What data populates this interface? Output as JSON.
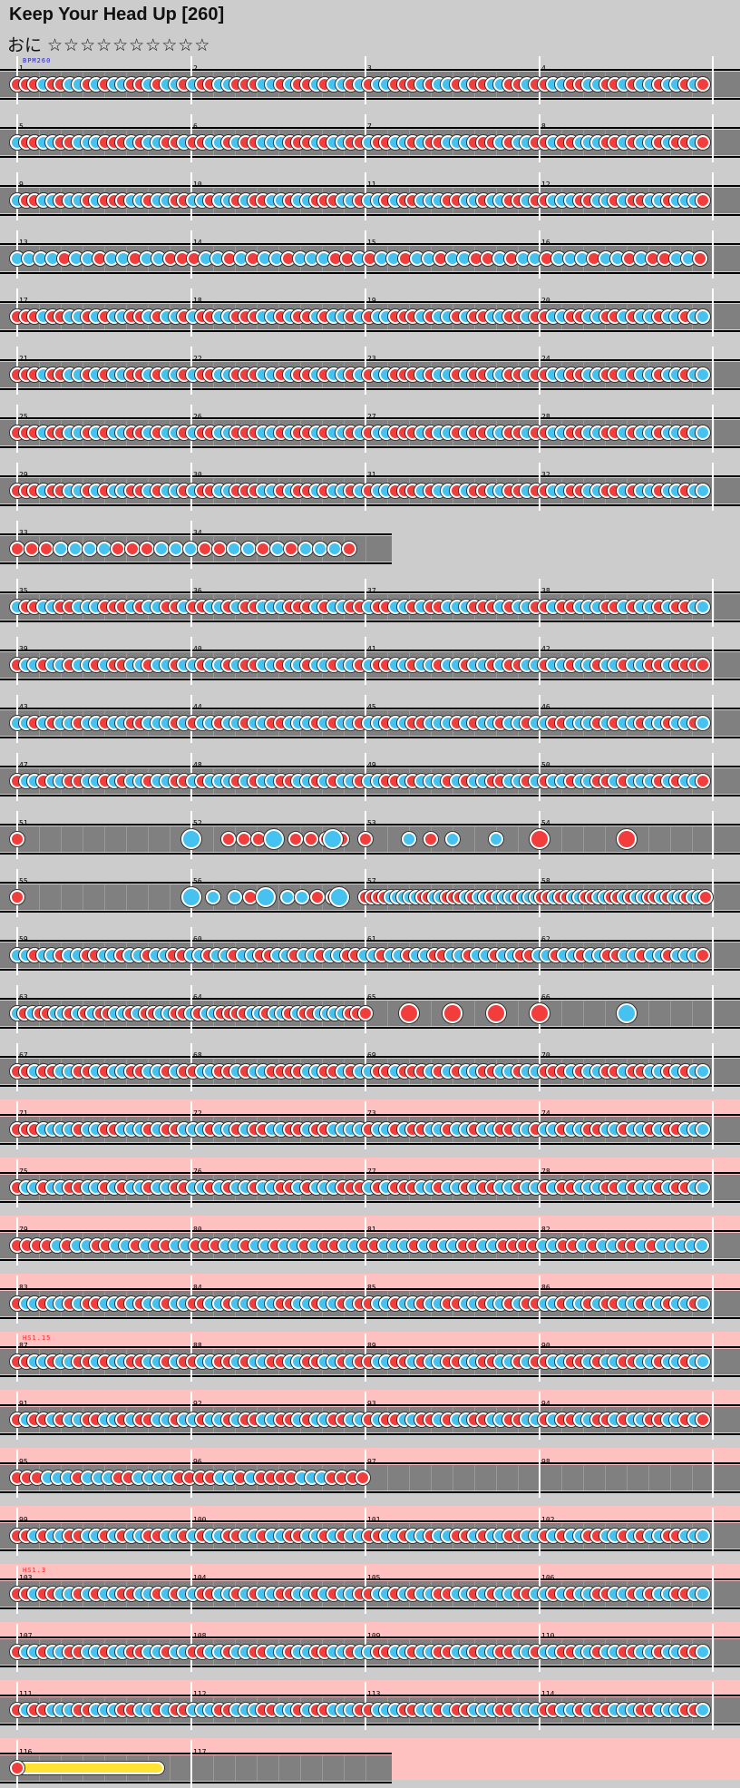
{
  "chart": {
    "title": "Keep Your Head Up [260]",
    "difficulty_label": "おに",
    "stars": "☆☆☆☆☆☆☆☆☆☆",
    "annotations": [
      {
        "row": 0,
        "text": "BPM260",
        "color": "#2222dd"
      },
      {
        "row": 22,
        "text": "HS1.15",
        "color": "#ff2222"
      },
      {
        "row": 26,
        "text": "HS1.3",
        "color": "#ff2222"
      }
    ],
    "highlighted_rows": [
      18,
      19,
      20,
      21,
      22,
      23,
      24,
      25,
      26,
      27,
      28,
      29
    ],
    "colors": {
      "don": "#f23d3d",
      "ka": "#45c2f0",
      "roll": "#ffe333",
      "lane": "#808080",
      "band": "#ffc0c0"
    },
    "rows": [
      {
        "start": 1,
        "bars": 4,
        "notes": "rrrbrrbbrbrbbrrbrbbrbrrbbrrrbbrbrrbrbbrbrbbrrrbrbbrbrrbbrrbrrbbrrbbrrbrbbrbbrbr"
      },
      {
        "start": 5,
        "bars": 4,
        "notes": "brrbbrrbbbrrrbrbbrrbrrbbrbrrbbbrrrbrbbrrbrrbbrbrrbbbrrrbrbbrrbrrbbbrrbrbbrbrrbr"
      },
      {
        "start": 9,
        "bars": 4,
        "notes": "brrbbrbbrbrrrbbrbbrrbbrbbrbrrbbrbbrrrbbrbbrbrrbbbrrbbrbbrrbrrbbbrrbbrbrrbbrbbbr"
      },
      {
        "start": 13,
        "bars": 4,
        "notes": "bbbbrbbrbbrbbrrrbbrbrbbrbbbrrbrbbrbbrbbrrbrbbrbbbrbbrbrrbbr",
        "roll_end": true
      },
      {
        "start": 17,
        "bars": 4,
        "notes": "rrrbrrbbrbrbbrrbrbbrbrrbbrrrbbrbrrbrbbrbrbbrrrbrbbrbrrbbrrbrrbbrrbbrrbrbbrbbrbb"
      },
      {
        "start": 21,
        "bars": 4,
        "notes": "rrrbrrbbrbrbbrrbrbbrbrrbbrrrbbrbrrbrbbrbrbbrrrbrbbrbrrbbrrbrrbbrrbbrrbrbbrbbrbb"
      },
      {
        "start": 25,
        "bars": 4,
        "notes": "rrrbrrbbrbrbbrrbrbbrbrrbbrrrbbrbrrbrbbrbrbbrrrbrbbrbrrbbrrbrrbbrrbbrrbrbbrbbrbb"
      },
      {
        "start": 29,
        "bars": 4,
        "notes": "rrrbrrbbrbrbbrrbrbbrbrrbbrrrbbrbrrbrbbrbrbbrrrbrbbrbrrbbrrbrrbbrrbbrrbrbbrbbrbb"
      },
      {
        "start": 33,
        "bars": 2,
        "short": true,
        "notes": "rrrbbbbrrrbbbrrbbrbrbbbr"
      },
      {
        "start": 35,
        "bars": 4,
        "notes": "brrbbrrbbbrrrbrbbrrbrrbbrbrrbbbrrrbrbbrrbrrbbrbrrbbbrrrbrbbrrbrrbbbrrbrbbrbrrbb"
      },
      {
        "start": 39,
        "bars": 4,
        "notes": "rbbrbbrbbrbrrbbrbbrbbrbbrbrrbbrbbrbbrbbrbrrbbrbbrbbrbbrbrrbbrbbrbbrbbrbbrrbrrrr"
      },
      {
        "start": 43,
        "bars": 4,
        "notes": "bbrbrbbrbbrbbrrbbbrbrbbrbbrbbrrbbbrbrbbrbbrbbrrbbbrbrbbrbbrbbrrbbbrbrbbrbbrbbrb"
      },
      {
        "start": 47,
        "bars": 4,
        "notes": "rbbrbbrrbbrbrbbrbbrrbrbbbrbrbbrrbbrbrbbrbbrrbrbbbrbrbbrrbbrbrbbrbbrrbrbbbrbrbbr"
      },
      {
        "start": 51,
        "bars": 4,
        "sparse": [
          [
            0,
            "r",
            0
          ],
          [
            8,
            "B",
            1
          ],
          [
            9.7,
            "r",
            0
          ],
          [
            10.4,
            "r",
            0
          ],
          [
            11.1,
            "r",
            0
          ],
          [
            11.8,
            "B",
            1
          ],
          [
            12.8,
            "r",
            0
          ],
          [
            13.5,
            "r",
            0
          ],
          [
            14.2,
            "r",
            0
          ],
          [
            14.9,
            "r",
            0
          ],
          [
            14.5,
            "B",
            1
          ],
          [
            16,
            "r",
            0
          ],
          [
            18,
            "b",
            0
          ],
          [
            19,
            "r",
            0
          ],
          [
            20,
            "b",
            0
          ],
          [
            22,
            "b",
            0
          ],
          [
            24,
            "R",
            1
          ],
          [
            28,
            "R",
            1
          ]
        ]
      },
      {
        "start": 55,
        "bars": 4,
        "sparse": [
          [
            0,
            "r",
            0
          ],
          [
            8,
            "B",
            1
          ],
          [
            9,
            "b",
            0
          ],
          [
            10,
            "b",
            0
          ],
          [
            10.7,
            "r",
            0
          ],
          [
            11.4,
            "B",
            1
          ],
          [
            12.4,
            "b",
            0
          ],
          [
            13.1,
            "b",
            0
          ],
          [
            13.8,
            "r",
            0
          ],
          [
            14.5,
            "r",
            0
          ],
          [
            14.8,
            "B",
            1
          ]
        ],
        "from_quarter": 16,
        "notes_tail": "rrrrbbbbbrrbbrrrbrbbrbbbrbbbrrbrrbbrrbbrrbrbbrrbrbbrbbr"
      },
      {
        "start": 59,
        "bars": 4,
        "notes": "bbrbbrbbrrbbrbbrbbrrbbrbbrbbrrbbrbbrbbrrbbrbbrbbrrbbrbbrbbrrbbrbbrbbrrbbrbbrbbbr"
      },
      {
        "start": 63,
        "bars": 4,
        "notes_partial": "brbrrbbrbrbrrbbrbrrbbrrbrbbrrrrbbrbbrbrrbbbbrrr",
        "partial_bars": 2,
        "sparse": [
          [
            18,
            "R",
            1
          ],
          [
            20,
            "R",
            1
          ],
          [
            22,
            "R",
            1
          ],
          [
            24,
            "R",
            1
          ],
          [
            28,
            "B",
            1
          ]
        ]
      },
      {
        "start": 67,
        "bars": 4,
        "notes": "rrbrrbbrrbrbbrrbbrbrrbbrrbrbbrrrrbbrrbrbbrrbrrrbrbrbbrrbbrbbrrrbrbbrrbrrbbrbrbb"
      },
      {
        "start": 71,
        "bars": 4,
        "notes": "rrrbbbbrbbrrbbbrbrrbbbrbbrbrrbbrrbrrbbbbrbbrbrrbbrbbrbbrrbbrbbrbbrrbbrbbrbrrbbb"
      },
      {
        "start": 75,
        "bars": 4,
        "notes": "rbbrbbrrbbrbrbbrbbrrbbrbrbbrbbrrbrbbbrrrbrbrrrbbrbbrbrrbbrbbrbrrbbbrrbrbbrbrrbb"
      },
      {
        "start": 79,
        "bars": 4,
        "notes": "rrrrbrbbrrbbrbrrbbrrrbbrbbrbbrbrrbbrrbbbrbrbbrrbbrrrrbbrrbrbbrrbrbbbbb",
        "roll_end": true
      },
      {
        "start": 83,
        "bars": 4,
        "notes": "rbbrbbrbrrbbrbrbbrbbrrbbrbbrbbrrbbrbbrbrrbbrbbrbbrrbbrbbrbrrbbrbbrbrrbbrbbrbbrb"
      },
      {
        "start": 87,
        "bars": 4,
        "notes": "rrbbrbbrrbrbbrrbbrbrrbbrrbrbbrrbbrrbbrbrrbbrrbrbbrrbbrrbbrbrrbbrrbrbbrrbbrbbrbb"
      },
      {
        "start": 91,
        "bars": 4,
        "notes": "rbrrbrbbrrbbrbrrbbrbbrbbrbrrbbrrbrbbrrbbrbrrbbrrbrbbrrbbrrbbrbrrbbrrbrbbrrbbrbr"
      },
      {
        "start": 95,
        "bars": 4,
        "notes_partial": "rrrbbbrbbbrrbbbbrrrrbbrbrrrrbbbrrrr",
        "partial_bars": 2
      },
      {
        "start": 99,
        "bars": 4,
        "notes": "rrbrbbrrbbrbrbbrrbbrbrbbrrbbrbbrrbbrbrbbrrbbrbbrbbrrbrbbrrbbrbrbbrrbbrbrbbrrbbb"
      },
      {
        "start": 103,
        "bars": 4,
        "notes": "rrbrrbbrbrbbrrbbrbrbbrrbbrbrbbrrbbrbrbbrrbbrbrbbrrbbrbrbbrrbbrbrbbrrbbrbrbbrrbb"
      },
      {
        "start": 107,
        "bars": 4,
        "notes": "rbbrbbrrbbrbbrrbbrbbrrbbrbbrrbbrbbrrbbrbbrrbbrbbrrbbrbbrrbbrbbrrbbrbbrrbbrbbrrb"
      },
      {
        "start": 111,
        "bars": 4,
        "notes": "rbrrbbbrrbbbrrbbrbrrbbbrrbbbrrbbrbrrbbbrrbbbrrbbrbrrbbbrrbbbrrbbrbrrbbbrrbbbrrb"
      },
      {
        "start": 116,
        "bars": 2,
        "short": true,
        "roll": [
          0,
          6.5
        ]
      }
    ]
  }
}
